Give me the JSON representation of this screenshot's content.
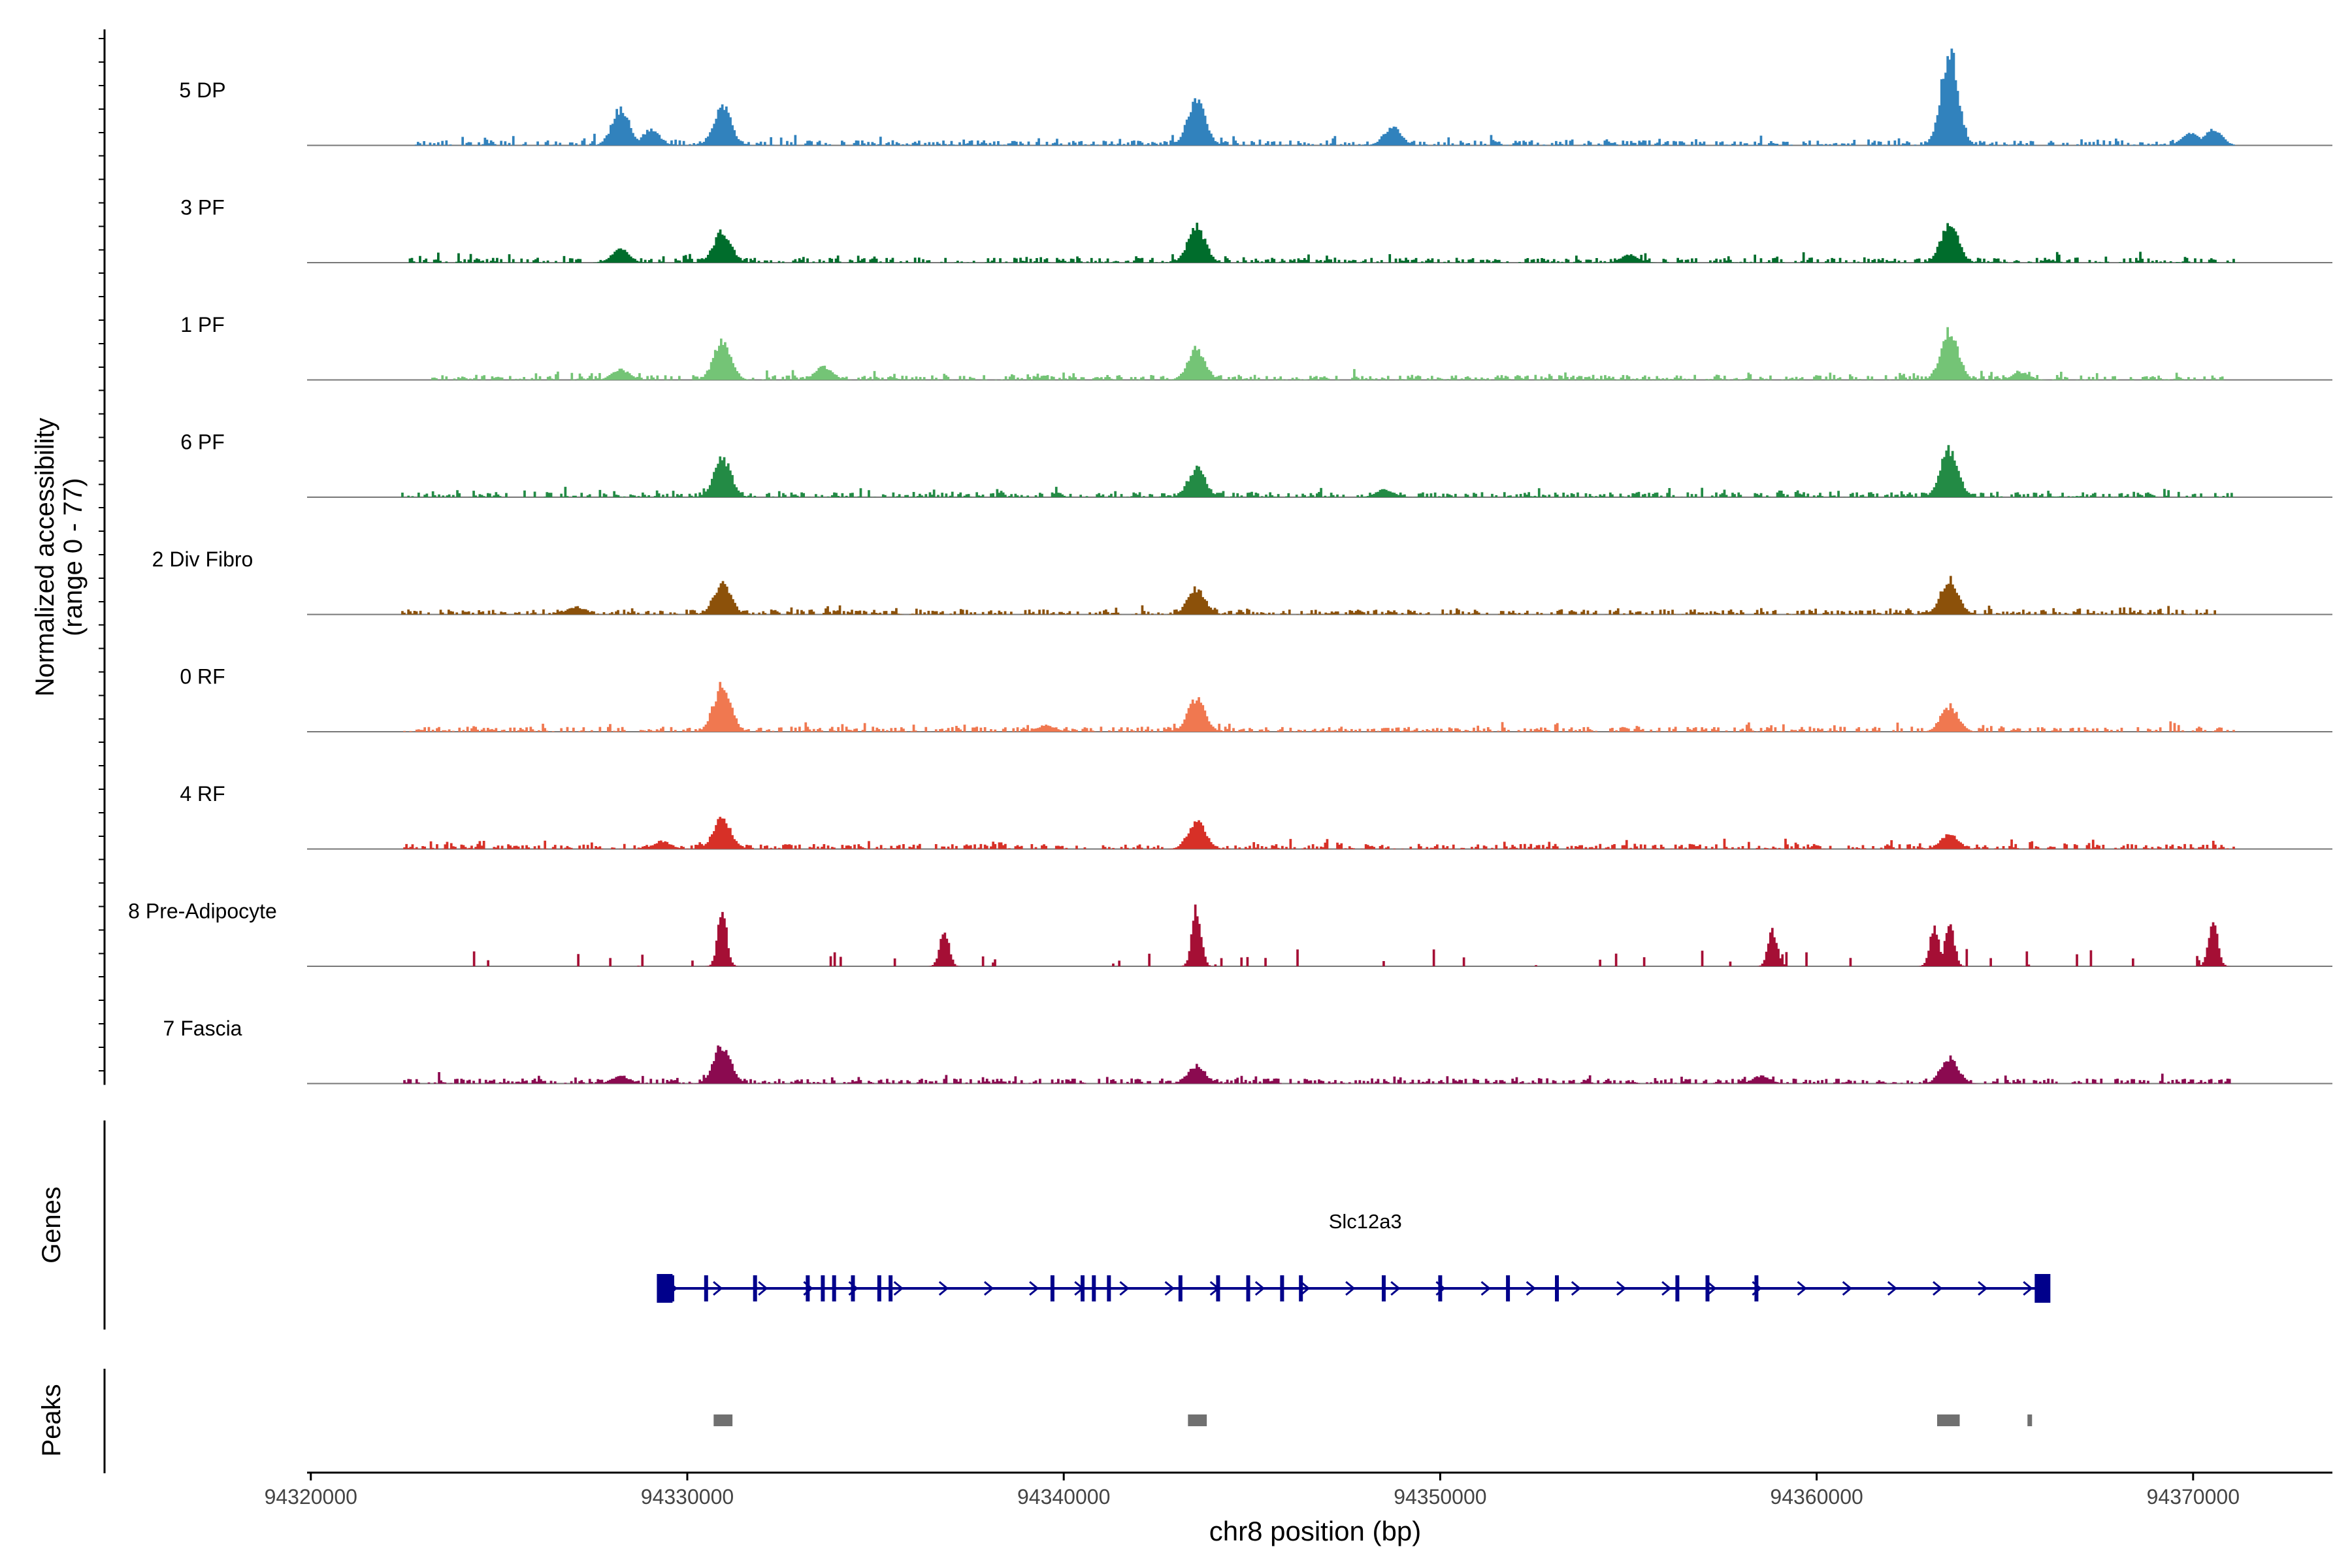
{
  "chart_data": {
    "type": "area",
    "title": "",
    "xlabel": "chr8 position (bp)",
    "ylabel_line1": "Normalized accessibility",
    "ylabel_line2": "(range 0 - 77)",
    "ylim": [
      0,
      77
    ],
    "xlim": [
      94319900,
      94373700
    ],
    "x_ticks": [
      94320000,
      94330000,
      94340000,
      94350000,
      94360000,
      94370000
    ],
    "x_tick_labels": [
      "94320000",
      "94330000",
      "94340000",
      "94350000",
      "94360000",
      "94370000"
    ],
    "data_start": 94320000,
    "data_end": 94371500,
    "peak_positions": [
      94328200,
      94329000,
      94330900,
      94343500,
      94348700,
      94363500,
      94369900,
      94370500
    ],
    "series": [
      {
        "name": "5 DP",
        "color": "#3182bd",
        "range": [
          94322600,
          94371100
        ],
        "peaks": [
          {
            "x": 94328200,
            "h": 28
          },
          {
            "x": 94329000,
            "h": 12
          },
          {
            "x": 94330900,
            "h": 30
          },
          {
            "x": 94343500,
            "h": 36
          },
          {
            "x": 94348700,
            "h": 14
          },
          {
            "x": 94363500,
            "h": 72
          },
          {
            "x": 94369900,
            "h": 10
          },
          {
            "x": 94370500,
            "h": 12
          }
        ]
      },
      {
        "name": "3 PF",
        "color": "#006d2c",
        "range": [
          94322600,
          94371100
        ],
        "peaks": [
          {
            "x": 94328200,
            "h": 10
          },
          {
            "x": 94330900,
            "h": 24
          },
          {
            "x": 94343500,
            "h": 28
          },
          {
            "x": 94355000,
            "h": 6
          },
          {
            "x": 94363500,
            "h": 30
          }
        ]
      },
      {
        "name": "1 PF",
        "color": "#74c476",
        "range": [
          94323200,
          94370800
        ],
        "peaks": [
          {
            "x": 94328200,
            "h": 8
          },
          {
            "x": 94330900,
            "h": 30
          },
          {
            "x": 94333600,
            "h": 10
          },
          {
            "x": 94343500,
            "h": 24
          },
          {
            "x": 94363500,
            "h": 38
          },
          {
            "x": 94365400,
            "h": 6
          }
        ]
      },
      {
        "name": "6 PF",
        "color": "#238b45",
        "range": [
          94322400,
          94371100
        ],
        "peaks": [
          {
            "x": 94330900,
            "h": 30
          },
          {
            "x": 94343500,
            "h": 22
          },
          {
            "x": 94363500,
            "h": 38
          },
          {
            "x": 94348500,
            "h": 6
          }
        ]
      },
      {
        "name": "2 Div Fibro",
        "color": "#8c510a",
        "range": [
          94322400,
          94370600
        ],
        "peaks": [
          {
            "x": 94330900,
            "h": 24
          },
          {
            "x": 94343500,
            "h": 20
          },
          {
            "x": 94363500,
            "h": 28
          },
          {
            "x": 94327000,
            "h": 6
          }
        ]
      },
      {
        "name": "0 RF",
        "color": "#f07850",
        "range": [
          94322400,
          94371100
        ],
        "peaks": [
          {
            "x": 94330900,
            "h": 36
          },
          {
            "x": 94343500,
            "h": 26
          },
          {
            "x": 94363500,
            "h": 20
          },
          {
            "x": 94339500,
            "h": 5
          }
        ]
      },
      {
        "name": "4 RF",
        "color": "#d73027",
        "range": [
          94322400,
          94371100
        ],
        "peaks": [
          {
            "x": 94330900,
            "h": 24
          },
          {
            "x": 94343500,
            "h": 22
          },
          {
            "x": 94363500,
            "h": 12
          },
          {
            "x": 94329300,
            "h": 6
          }
        ]
      },
      {
        "name": "8 Pre-Adipocyte",
        "color": "#a50f35",
        "range": [
          94323400,
          94371300
        ],
        "peaks": [
          {
            "x": 94330900,
            "h": 42
          },
          {
            "x": 94343500,
            "h": 46
          },
          {
            "x": 94363500,
            "h": 36
          },
          {
            "x": 94370500,
            "h": 36
          },
          {
            "x": 94358800,
            "h": 28
          },
          {
            "x": 94336800,
            "h": 28
          },
          {
            "x": 94363100,
            "h": 32
          }
        ]
      },
      {
        "name": "7 Fascia",
        "color": "#8b0a50",
        "range": [
          94322400,
          94371100
        ],
        "peaks": [
          {
            "x": 94330900,
            "h": 30
          },
          {
            "x": 94343500,
            "h": 14
          },
          {
            "x": 94363500,
            "h": 20
          },
          {
            "x": 94328200,
            "h": 6
          },
          {
            "x": 94358500,
            "h": 6
          }
        ]
      }
    ],
    "genes": [
      {
        "name": "Slc12a3",
        "start": 94329300,
        "end": 94366200,
        "color": "#00008b",
        "exons": [
          94329600,
          94330500,
          94331800,
          94333200,
          94333600,
          94333900,
          94334400,
          94335100,
          94335400,
          94339700,
          94340500,
          94340800,
          94341200,
          94343100,
          94344100,
          94344900,
          94345800,
          94346300,
          94348500,
          94350000,
          94351800,
          94353100,
          94356300,
          94357100,
          94358400
        ],
        "end_exons": [
          94329400,
          94366000
        ]
      }
    ],
    "genes_label": "Genes",
    "peaks_label": "Peaks",
    "peak_regions": [
      [
        94330700,
        94331200
      ],
      [
        94343300,
        94343800
      ],
      [
        94363200,
        94363800
      ],
      [
        94365600,
        94365700
      ]
    ],
    "peak_color": "#707070"
  }
}
